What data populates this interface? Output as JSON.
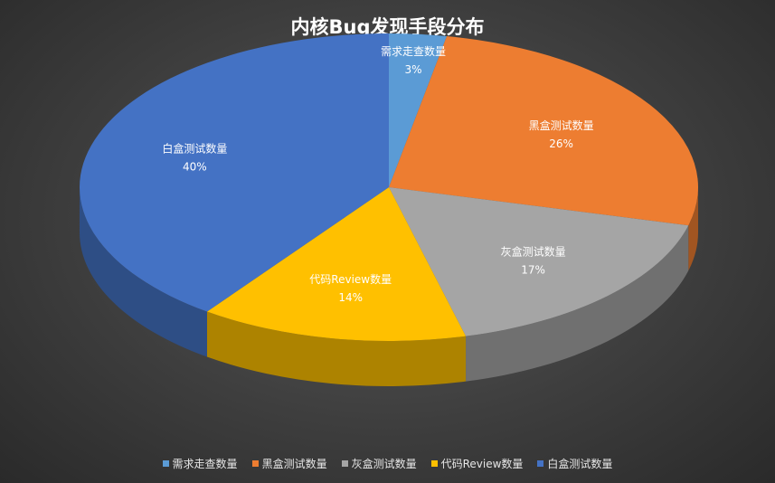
{
  "chart_data": {
    "type": "pie",
    "title": "内核Bug发现手段分布",
    "categories": [
      "需求走查数量",
      "黑盒测试数量",
      "灰盒测试数量",
      "代码Review数量",
      "白盒测试数量"
    ],
    "values": [
      3,
      26,
      17,
      14,
      40
    ],
    "value_labels": [
      "3%",
      "26%",
      "17%",
      "14%",
      "40%"
    ],
    "colors": [
      "#5b9bd5",
      "#ed7d31",
      "#a5a5a5",
      "#ffc000",
      "#4472c4"
    ],
    "label_color": "#ffffff",
    "legend_position": "bottom",
    "style": "3d"
  }
}
